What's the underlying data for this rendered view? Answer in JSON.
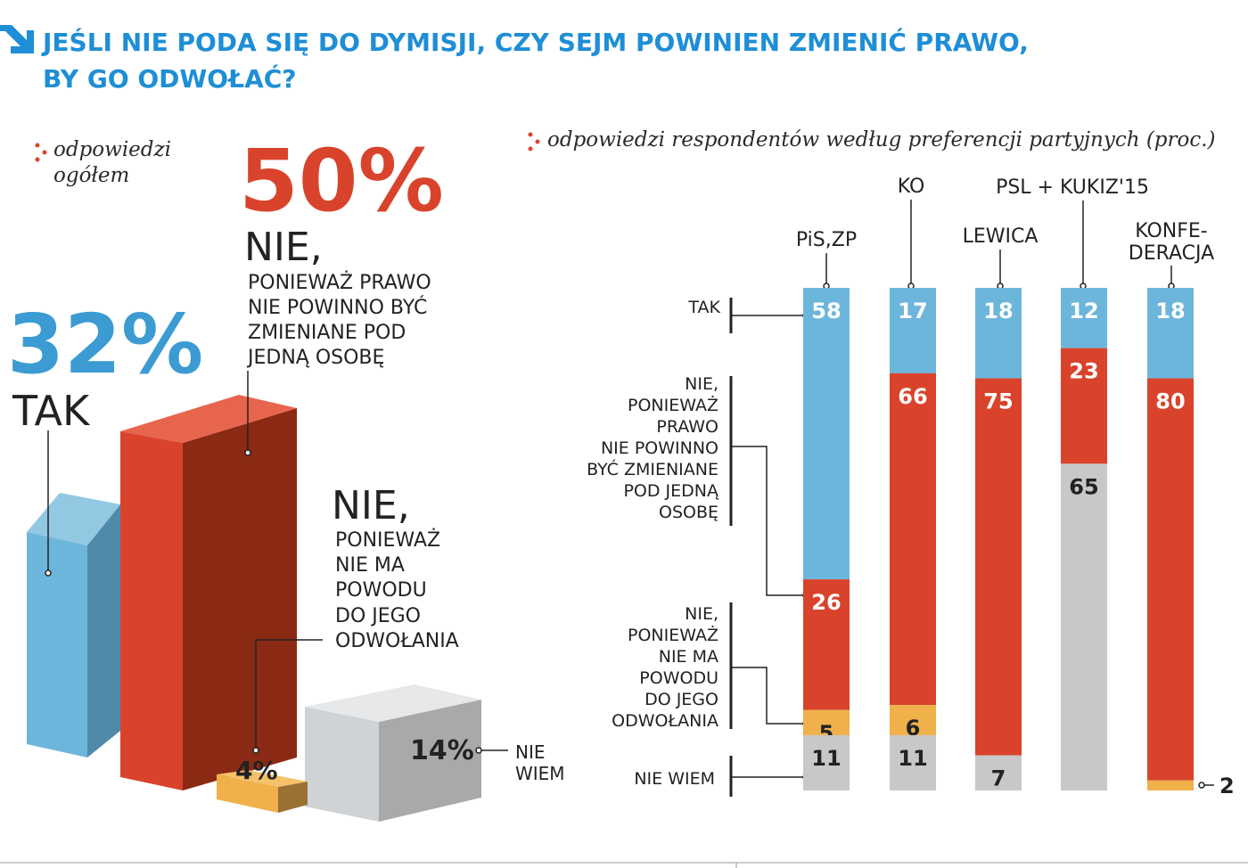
{
  "header": {
    "title_line1": "JEŚLI NIE PODA SIĘ DO DYMISJI, CZY SEJM POWINIEN ZMIENIĆ PRAWO,",
    "title_line2": "BY GO ODWOŁAĆ?",
    "icon": "arrow-down-right-icon"
  },
  "colors": {
    "tak": "#6db6db",
    "nie_prawo": "#d9432b",
    "nie_powodu": "#f0b04a",
    "nie_wiem": "#c8c8c8",
    "title": "#1e8ed6"
  },
  "left_panel": {
    "subtitle_line1": "odpowiedzi",
    "subtitle_line2": "ogółem"
  },
  "chart_data": [
    {
      "type": "bar",
      "subtitle": "odpowiedzi ogółem",
      "unit": "%",
      "categories": [
        "TAK",
        "NIE, PONIEWAŻ PRAWO NIE POWINNO BYĆ ZMIENIANE POD JEDNĄ OSOBĘ",
        "NIE, PONIEWAŻ NIE MA POWODU DO JEGO ODWOŁANIA",
        "NIE WIEM"
      ],
      "values": [
        32,
        50,
        4,
        14
      ],
      "value_labels": [
        "32%",
        "50%",
        "4%",
        "14%"
      ],
      "display": {
        "tak_big": "32%",
        "tak_word": "TAK",
        "nie_prawo_big": "50%",
        "nie_prawo_word": "NIE,",
        "nie_prawo_lines": [
          "PONIEWAŻ PRAWO",
          "NIE POWINNO BYĆ",
          "ZMIENIANE POD",
          "JEDNĄ OSOBĘ"
        ],
        "nie_powodu_word": "NIE,",
        "nie_powodu_lines": [
          "PONIEWAŻ",
          "NIE MA",
          "POWODU",
          "DO JEGO",
          "ODWOŁANIA"
        ],
        "nie_powodu_label": "4%",
        "nie_wiem_label": "14%",
        "nie_wiem_lines": [
          "NIE",
          "WIEM"
        ]
      }
    },
    {
      "type": "bar",
      "stacked": true,
      "orientation": "vertical",
      "subtitle": "odpowiedzi respondentów według preferencji partyjnych (proc.)",
      "categories": [
        "PiS,ZP",
        "KO",
        "LEWICA",
        "PSL + KUKIZ'15",
        "KONFE-DERACJA"
      ],
      "category_lines": [
        [
          "PiS,ZP"
        ],
        [
          "KO"
        ],
        [
          "LEWICA"
        ],
        [
          "PSL + KUKIZ'15"
        ],
        [
          "KONFE-",
          "DERACJA"
        ]
      ],
      "series": [
        {
          "name": "TAK",
          "values": [
            58,
            17,
            18,
            12,
            18
          ]
        },
        {
          "name": "NIE, PONIEWAŻ PRAWO NIE POWINNO BYĆ ZMIENIANE POD JEDNĄ OSOBĘ",
          "values": [
            26,
            66,
            75,
            23,
            80
          ]
        },
        {
          "name": "NIE, PONIEWAŻ NIE MA POWODU DO JEGO ODWOŁANIA",
          "values": [
            5,
            6,
            0,
            0,
            2
          ]
        },
        {
          "name": "NIE WIEM",
          "values": [
            11,
            11,
            7,
            65,
            0
          ]
        }
      ],
      "legend_lines": [
        [
          "TAK"
        ],
        [
          "NIE,",
          "PONIEWAŻ",
          "PRAWO",
          "NIE POWINNO",
          "BYĆ ZMIENIANE",
          "POD JEDNĄ",
          "OSOBĘ"
        ],
        [
          "NIE,",
          "PONIEWAŻ",
          "NIE MA",
          "POWODU",
          "DO JEGO",
          "ODWOŁANIA"
        ],
        [
          "NIE WIEM"
        ]
      ],
      "outside_label": "2",
      "ylim": [
        0,
        100
      ]
    }
  ]
}
